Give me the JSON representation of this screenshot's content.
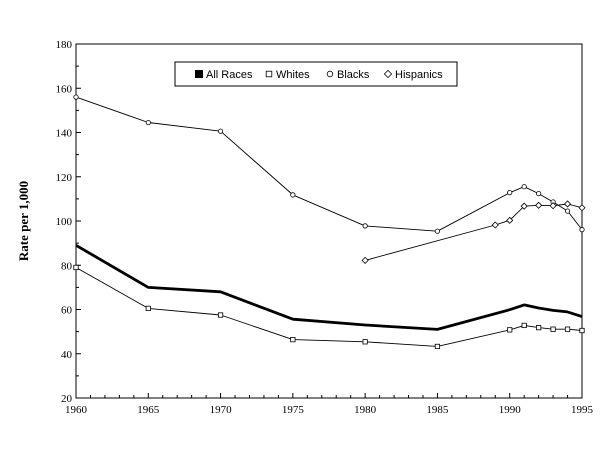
{
  "chart_data": {
    "type": "line",
    "title": "",
    "xlabel": "",
    "ylabel": "Rate per 1,000",
    "xlim": [
      1960,
      1995
    ],
    "ylim": [
      20,
      180
    ],
    "x_ticks": [
      1960,
      1965,
      1970,
      1975,
      1980,
      1985,
      1990,
      1995
    ],
    "y_ticks": [
      20,
      40,
      60,
      80,
      100,
      120,
      140,
      160,
      180
    ],
    "grid": false,
    "legend_position": "top-center",
    "series": [
      {
        "name": "All Races",
        "marker": "filled-square",
        "line_weight": "bold",
        "x": [
          1960,
          1965,
          1970,
          1975,
          1980,
          1985,
          1990,
          1991,
          1992,
          1993,
          1994,
          1995
        ],
        "y": [
          89,
          70,
          68,
          55.6,
          53,
          51,
          59.9,
          62.1,
          60.7,
          59.6,
          58.9,
          56.8
        ]
      },
      {
        "name": "Whites",
        "marker": "open-square",
        "line_weight": "thin",
        "x": [
          1960,
          1965,
          1970,
          1975,
          1980,
          1985,
          1990,
          1991,
          1992,
          1993,
          1994,
          1995
        ],
        "y": [
          79,
          60.5,
          57.5,
          46.4,
          45.4,
          43.3,
          50.8,
          52.8,
          51.8,
          51.1,
          51.1,
          50.5
        ]
      },
      {
        "name": "Blacks",
        "marker": "open-circle",
        "line_weight": "thin",
        "x": [
          1960,
          1965,
          1970,
          1975,
          1980,
          1985,
          1990,
          1991,
          1992,
          1993,
          1994,
          1995
        ],
        "y": [
          156,
          144.5,
          140.6,
          111.8,
          97.8,
          95.4,
          112.8,
          115.5,
          112.4,
          108.6,
          104.5,
          96.1
        ]
      },
      {
        "name": "Hispanics",
        "marker": "open-diamond",
        "line_weight": "thin",
        "x": [
          1980,
          1989,
          1990,
          1991,
          1992,
          1993,
          1994,
          1995
        ],
        "y": [
          82.2,
          98.2,
          100.3,
          106.7,
          107.1,
          106.9,
          107.7,
          106
        ]
      }
    ]
  }
}
